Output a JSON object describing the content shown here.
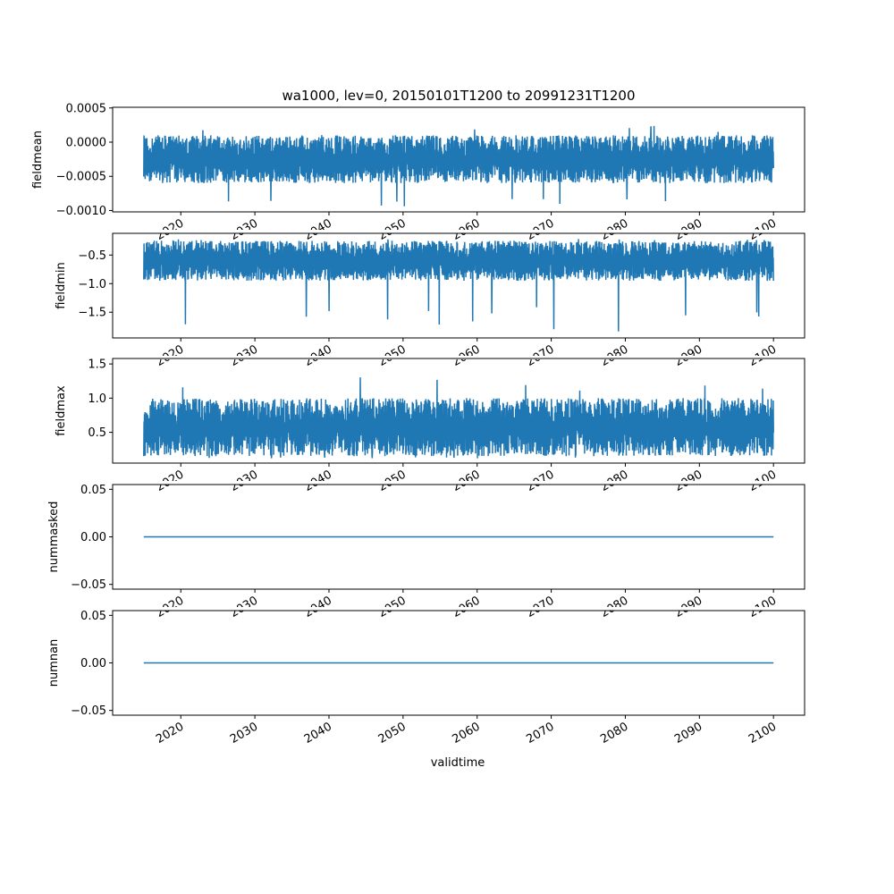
{
  "chart_data": {
    "type": "line",
    "title": "wa1000, lev=0, 20150101T1200 to 20991231T1200",
    "xlabel": "validtime",
    "x_range": [
      2015.0,
      2100.0
    ],
    "xlim": [
      2010.8,
      2104.2
    ],
    "x_ticks": [
      "2020",
      "2030",
      "2040",
      "2050",
      "2060",
      "2070",
      "2080",
      "2090",
      "2100"
    ],
    "color": "#1f77b4",
    "panels": [
      {
        "ylabel": "fieldmean",
        "ylim": [
          -0.00102,
          0.00051
        ],
        "yticks": [
          {
            "v": 0.0005,
            "label": "0.0005"
          },
          {
            "v": 0.0,
            "label": "0.0000"
          },
          {
            "v": -0.0005,
            "label": "−0.0005"
          },
          {
            "v": -0.001,
            "label": "−0.0010"
          }
        ],
        "series": {
          "typical_low": -0.0006,
          "typical_high": 0.0001,
          "min": -0.00095,
          "max": 0.00043,
          "constant": false
        }
      },
      {
        "ylabel": "fieldmin",
        "ylim": [
          -1.95,
          -0.12
        ],
        "yticks": [
          {
            "v": -0.5,
            "label": "−0.5"
          },
          {
            "v": -1.0,
            "label": "−1.0"
          },
          {
            "v": -1.5,
            "label": "−1.5"
          }
        ],
        "series": {
          "typical_low": -0.95,
          "typical_high": -0.25,
          "min": -1.85,
          "max": -0.2,
          "constant": false
        }
      },
      {
        "ylabel": "fieldmax",
        "ylim": [
          0.05,
          1.58
        ],
        "yticks": [
          {
            "v": 0.5,
            "label": "0.5"
          },
          {
            "v": 1.0,
            "label": "1.0"
          },
          {
            "v": 1.5,
            "label": "1.5"
          }
        ],
        "series": {
          "typical_low": 0.15,
          "typical_high": 1.0,
          "min": 0.12,
          "max": 1.52,
          "constant": false
        }
      },
      {
        "ylabel": "nummasked",
        "ylim": [
          -0.055,
          0.055
        ],
        "yticks": [
          {
            "v": 0.05,
            "label": "0.05"
          },
          {
            "v": 0.0,
            "label": "0.00"
          },
          {
            "v": -0.05,
            "label": "−0.05"
          }
        ],
        "series": {
          "value": 0,
          "constant": true
        }
      },
      {
        "ylabel": "numnan",
        "ylim": [
          -0.055,
          0.055
        ],
        "yticks": [
          {
            "v": 0.05,
            "label": "0.05"
          },
          {
            "v": 0.0,
            "label": "0.00"
          },
          {
            "v": -0.05,
            "label": "−0.05"
          }
        ],
        "series": {
          "value": 0,
          "constant": true
        }
      }
    ]
  }
}
